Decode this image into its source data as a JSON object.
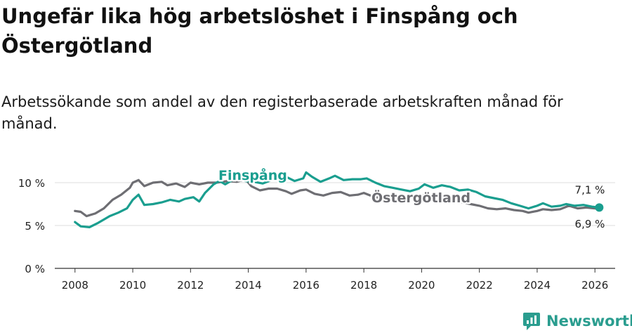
{
  "title": "Ungefär lika hög arbetslöshet i Finspång och Östergötland",
  "subtitle": "Arbetssökande som andel av den registerbaserade arbetskraften månad för månad.",
  "brand": {
    "name": "Newsworthy"
  },
  "colors": {
    "finspang": "#1a9e8f",
    "ostergotland": "#6e6e73",
    "grid": "#dddddd",
    "axis": "#333333"
  },
  "chart_data": {
    "type": "line",
    "title": "Ungefär lika hög arbetslöshet i Finspång och Östergötland",
    "subtitle": "Arbetssökande som andel av den registerbaserade arbetskraften månad för månad.",
    "xlabel": "",
    "ylabel": "",
    "xlim": [
      2007.3,
      2026.7
    ],
    "ylim": [
      0,
      10
    ],
    "y_ticks": [
      {
        "value": 0,
        "label": "0 %"
      },
      {
        "value": 5,
        "label": "5 %"
      },
      {
        "value": 10,
        "label": "10 %"
      }
    ],
    "x_ticks": [
      {
        "value": 2008,
        "label": "2008"
      },
      {
        "value": 2010,
        "label": "2010"
      },
      {
        "value": 2012,
        "label": "2012"
      },
      {
        "value": 2014,
        "label": "2014"
      },
      {
        "value": 2016,
        "label": "2016"
      },
      {
        "value": 2018,
        "label": "2018"
      },
      {
        "value": 2020,
        "label": "2020"
      },
      {
        "value": 2022,
        "label": "2022"
      },
      {
        "value": 2024,
        "label": "2024"
      },
      {
        "value": 2026,
        "label": "2026"
      }
    ],
    "grid": true,
    "series": [
      {
        "name": "Östergötland",
        "label": "Östergötland",
        "end_label": "6,9 %",
        "points": [
          [
            2008.0,
            6.7
          ],
          [
            2008.2,
            6.6
          ],
          [
            2008.4,
            6.1
          ],
          [
            2008.7,
            6.4
          ],
          [
            2009.0,
            7.0
          ],
          [
            2009.3,
            8.0
          ],
          [
            2009.6,
            8.6
          ],
          [
            2009.9,
            9.4
          ],
          [
            2010.0,
            10.0
          ],
          [
            2010.2,
            10.3
          ],
          [
            2010.4,
            9.6
          ],
          [
            2010.7,
            10.0
          ],
          [
            2011.0,
            10.1
          ],
          [
            2011.2,
            9.7
          ],
          [
            2011.5,
            9.9
          ],
          [
            2011.8,
            9.5
          ],
          [
            2012.0,
            10.0
          ],
          [
            2012.3,
            9.8
          ],
          [
            2012.6,
            10.0
          ],
          [
            2012.9,
            10.0
          ],
          [
            2013.3,
            10.2
          ],
          [
            2013.6,
            10.1
          ],
          [
            2013.9,
            10.4
          ],
          [
            2014.1,
            9.6
          ],
          [
            2014.4,
            9.1
          ],
          [
            2014.7,
            9.3
          ],
          [
            2015.0,
            9.3
          ],
          [
            2015.3,
            9.0
          ],
          [
            2015.5,
            8.7
          ],
          [
            2015.8,
            9.1
          ],
          [
            2016.0,
            9.2
          ],
          [
            2016.3,
            8.7
          ],
          [
            2016.6,
            8.5
          ],
          [
            2016.9,
            8.8
          ],
          [
            2017.2,
            8.9
          ],
          [
            2017.5,
            8.5
          ],
          [
            2017.8,
            8.6
          ],
          [
            2018.0,
            8.8
          ],
          [
            2018.3,
            8.4
          ],
          [
            2018.6,
            8.2
          ],
          [
            2019.0,
            8.1
          ],
          [
            2019.3,
            8.0
          ],
          [
            2019.6,
            8.3
          ],
          [
            2019.9,
            8.5
          ],
          [
            2020.2,
            8.6
          ],
          [
            2020.5,
            8.4
          ],
          [
            2020.8,
            8.3
          ],
          [
            2021.1,
            8.0
          ],
          [
            2021.4,
            7.7
          ],
          [
            2021.7,
            7.5
          ],
          [
            2022.0,
            7.3
          ],
          [
            2022.3,
            7.0
          ],
          [
            2022.6,
            6.9
          ],
          [
            2022.9,
            7.0
          ],
          [
            2023.2,
            6.8
          ],
          [
            2023.5,
            6.7
          ],
          [
            2023.7,
            6.5
          ],
          [
            2024.0,
            6.7
          ],
          [
            2024.2,
            6.9
          ],
          [
            2024.5,
            6.8
          ],
          [
            2024.8,
            6.9
          ],
          [
            2025.1,
            7.3
          ],
          [
            2025.4,
            7.0
          ],
          [
            2025.7,
            7.1
          ],
          [
            2026.0,
            7.0
          ],
          [
            2026.15,
            6.9
          ]
        ]
      },
      {
        "name": "Finspång",
        "label": "Finspång",
        "end_label": "7,1 %",
        "points": [
          [
            2008.0,
            5.4
          ],
          [
            2008.2,
            4.9
          ],
          [
            2008.5,
            4.8
          ],
          [
            2008.8,
            5.3
          ],
          [
            2009.0,
            5.7
          ],
          [
            2009.2,
            6.1
          ],
          [
            2009.5,
            6.5
          ],
          [
            2009.8,
            7.0
          ],
          [
            2010.0,
            8.0
          ],
          [
            2010.2,
            8.6
          ],
          [
            2010.4,
            7.4
          ],
          [
            2010.7,
            7.5
          ],
          [
            2011.0,
            7.7
          ],
          [
            2011.3,
            8.0
          ],
          [
            2011.6,
            7.8
          ],
          [
            2011.8,
            8.1
          ],
          [
            2012.1,
            8.3
          ],
          [
            2012.3,
            7.8
          ],
          [
            2012.5,
            8.8
          ],
          [
            2012.8,
            9.8
          ],
          [
            2013.0,
            10.2
          ],
          [
            2013.2,
            9.8
          ],
          [
            2013.5,
            10.4
          ],
          [
            2013.7,
            10.5
          ],
          [
            2013.9,
            10.2
          ],
          [
            2014.2,
            10.1
          ],
          [
            2014.5,
            9.9
          ],
          [
            2014.8,
            10.3
          ],
          [
            2015.0,
            10.5
          ],
          [
            2015.3,
            10.7
          ],
          [
            2015.6,
            10.2
          ],
          [
            2015.9,
            10.5
          ],
          [
            2016.0,
            11.2
          ],
          [
            2016.2,
            10.7
          ],
          [
            2016.5,
            10.1
          ],
          [
            2016.8,
            10.5
          ],
          [
            2017.0,
            10.8
          ],
          [
            2017.3,
            10.3
          ],
          [
            2017.6,
            10.4
          ],
          [
            2017.9,
            10.4
          ],
          [
            2018.1,
            10.5
          ],
          [
            2018.4,
            10.0
          ],
          [
            2018.7,
            9.6
          ],
          [
            2019.0,
            9.4
          ],
          [
            2019.3,
            9.2
          ],
          [
            2019.6,
            9.0
          ],
          [
            2019.9,
            9.3
          ],
          [
            2020.1,
            9.8
          ],
          [
            2020.4,
            9.4
          ],
          [
            2020.7,
            9.7
          ],
          [
            2021.0,
            9.5
          ],
          [
            2021.3,
            9.1
          ],
          [
            2021.6,
            9.2
          ],
          [
            2021.9,
            8.9
          ],
          [
            2022.2,
            8.4
          ],
          [
            2022.5,
            8.2
          ],
          [
            2022.8,
            8.0
          ],
          [
            2023.1,
            7.6
          ],
          [
            2023.4,
            7.3
          ],
          [
            2023.7,
            7.0
          ],
          [
            2024.0,
            7.3
          ],
          [
            2024.2,
            7.6
          ],
          [
            2024.5,
            7.2
          ],
          [
            2024.8,
            7.3
          ],
          [
            2025.0,
            7.5
          ],
          [
            2025.3,
            7.3
          ],
          [
            2025.6,
            7.4
          ],
          [
            2025.9,
            7.2
          ],
          [
            2026.15,
            7.1
          ]
        ]
      }
    ]
  }
}
